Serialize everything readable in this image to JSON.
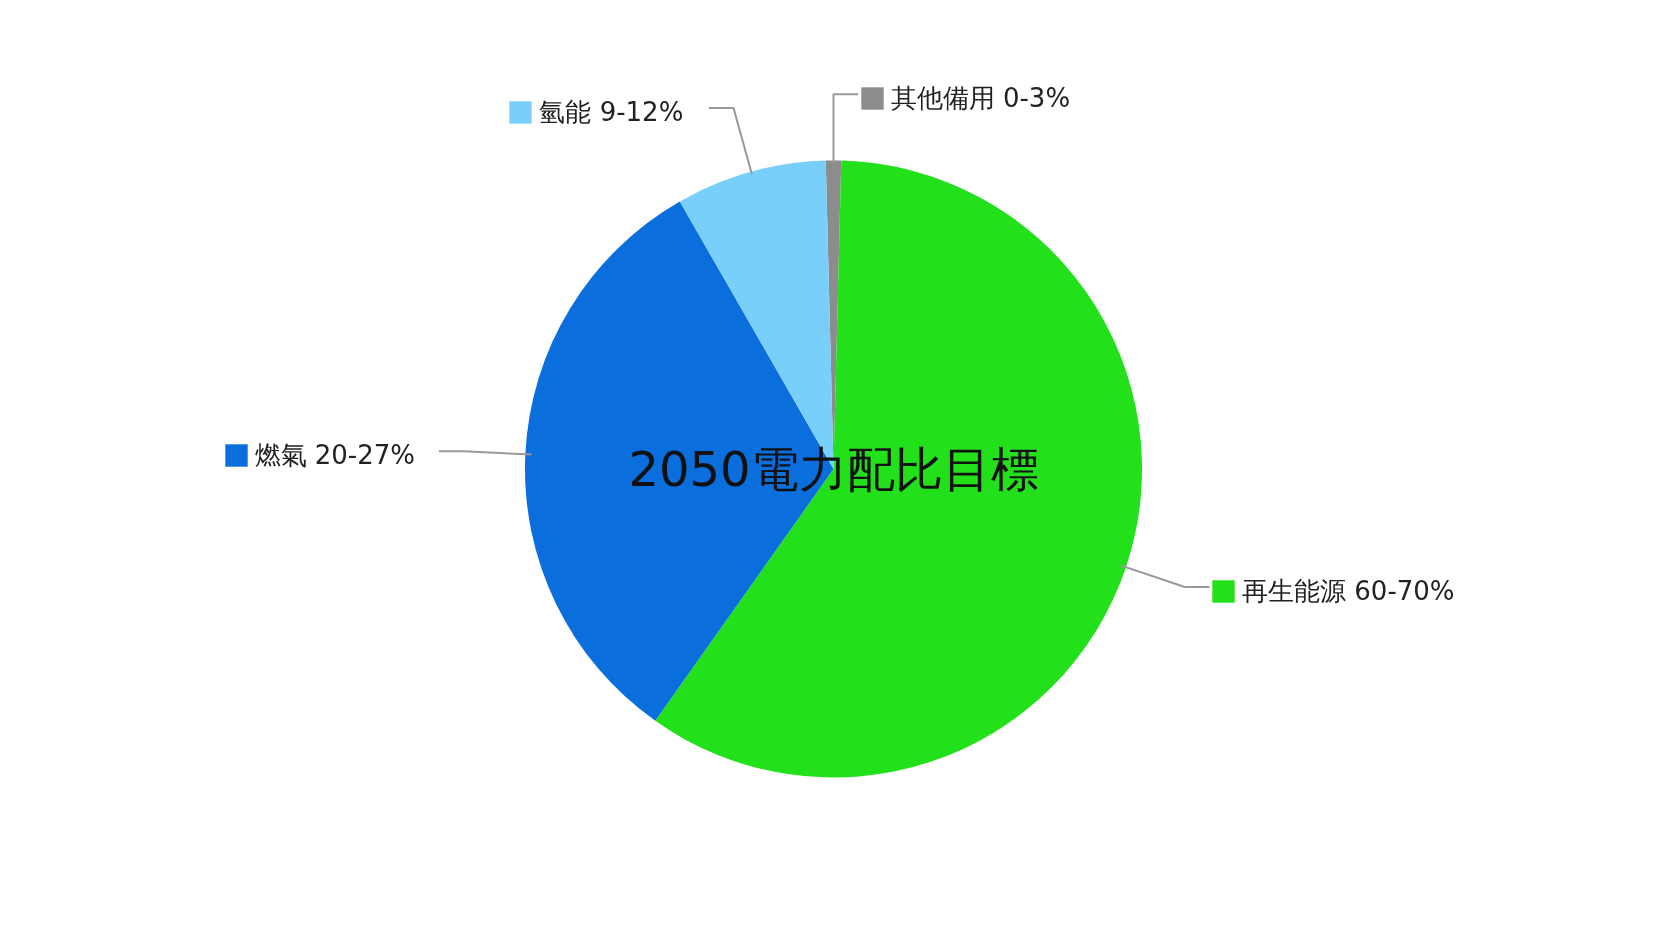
{
  "chart_data": {
    "type": "pie",
    "title": "2050電力配比目標",
    "categories": [
      "其他備用 0-3%",
      "再生能源 60-70%",
      "燃氣 20-27%",
      "氫能 9-12%"
    ],
    "values": [
      0.8,
      59.4,
      31.9,
      7.9
    ],
    "colors": [
      "#8c8c8c",
      "#22e01a",
      "#0a6fdc",
      "#78d0fa"
    ],
    "legend": "right"
  }
}
